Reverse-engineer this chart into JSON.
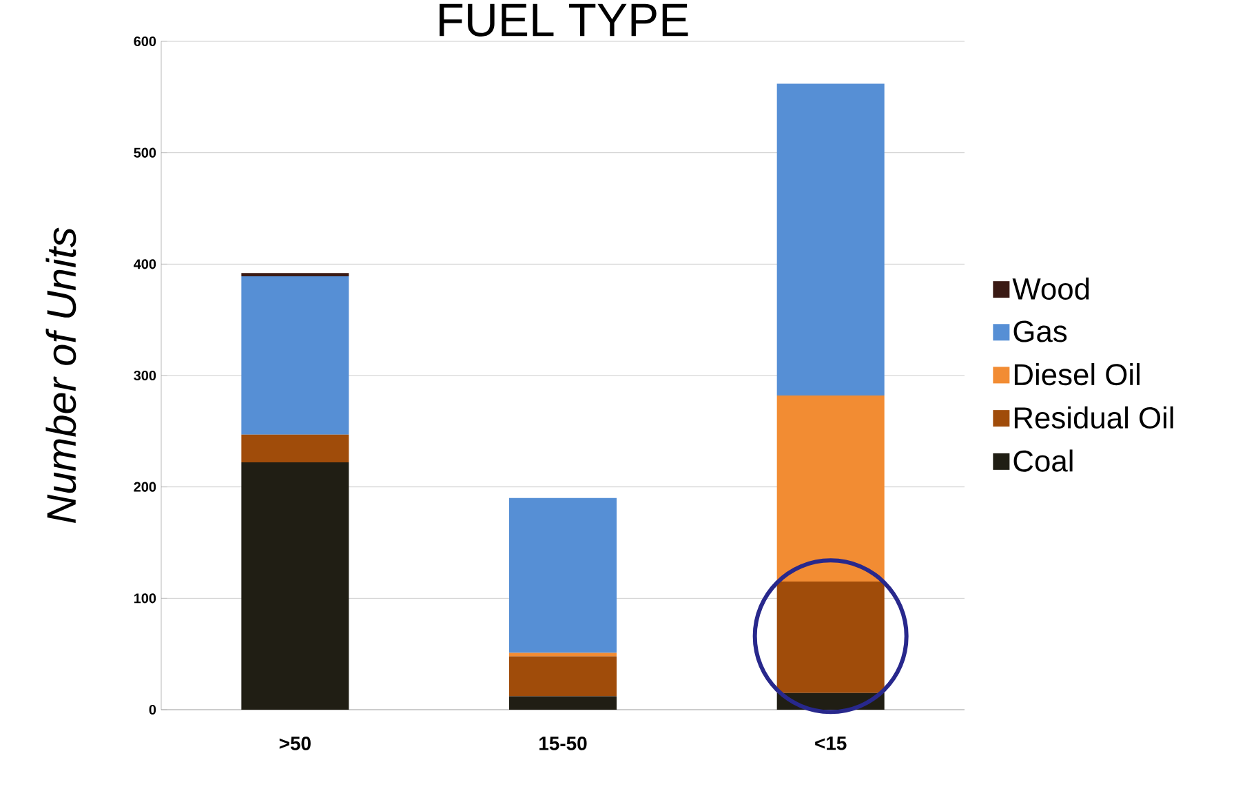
{
  "chart_data": {
    "type": "bar",
    "title": "FUEL TYPE",
    "ylabel": "Number of Units",
    "stacked": true,
    "categories": [
      ">50",
      "15-50",
      "<15"
    ],
    "series": [
      {
        "name": "Coal",
        "color": "#201e14",
        "values": [
          222,
          12,
          15
        ]
      },
      {
        "name": "Residual Oil",
        "color": "#a04c0a",
        "values": [
          25,
          36,
          100
        ]
      },
      {
        "name": "Diesel Oil",
        "color": "#f28c33",
        "values": [
          0,
          3,
          167
        ]
      },
      {
        "name": "Gas",
        "color": "#568fd5",
        "values": [
          142,
          139,
          280
        ]
      },
      {
        "name": "Wood",
        "color": "#3a1a14",
        "values": [
          3,
          0,
          0
        ]
      }
    ],
    "ylim": [
      0,
      600
    ],
    "yticks": [
      0,
      100,
      200,
      300,
      400,
      500,
      600
    ],
    "grid": "y",
    "legend": "right"
  }
}
